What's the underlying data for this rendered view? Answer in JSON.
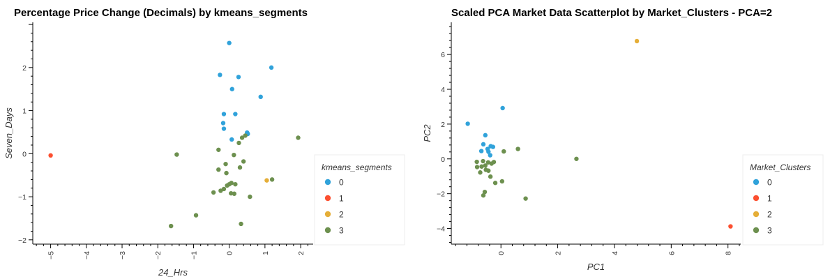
{
  "chart_data": [
    {
      "type": "scatter",
      "title": "Percentage Price Change (Decimals) by kmeans_segments",
      "xlabel": "24_Hrs",
      "ylabel": "Seven_Days",
      "xlim": [
        -5.5,
        2.35
      ],
      "ylim": [
        -2.1,
        3.05
      ],
      "xticks": [
        "−5",
        "−4",
        "−3",
        "−2",
        "−1",
        "0",
        "1",
        "2"
      ],
      "xtick_values": [
        -5,
        -4,
        -3,
        -2,
        -1,
        0,
        1,
        2
      ],
      "yticks": [
        "−2",
        "−1",
        "0",
        "1",
        "2"
      ],
      "ytick_values": [
        -2,
        -1,
        0,
        1,
        2
      ],
      "legend": {
        "title": "kmeans_segments",
        "position": "right",
        "entries": [
          {
            "label": "0",
            "color": "#30a2da"
          },
          {
            "label": "1",
            "color": "#fc4f30"
          },
          {
            "label": "2",
            "color": "#e5ae38"
          },
          {
            "label": "3",
            "color": "#6d904f"
          }
        ]
      },
      "series": [
        {
          "name": "0",
          "color": "#30a2da",
          "points": [
            [
              0.0,
              2.57
            ],
            [
              -0.26,
              1.83
            ],
            [
              0.26,
              1.78
            ],
            [
              1.18,
              2.0
            ],
            [
              0.08,
              1.5
            ],
            [
              0.88,
              1.32
            ],
            [
              -0.15,
              0.92
            ],
            [
              0.17,
              0.92
            ],
            [
              -0.17,
              0.71
            ],
            [
              -0.15,
              0.58
            ],
            [
              0.5,
              0.49
            ],
            [
              0.52,
              0.46
            ],
            [
              0.07,
              0.33
            ]
          ]
        },
        {
          "name": "1",
          "color": "#fc4f30",
          "points": [
            [
              -5.0,
              -0.04
            ]
          ]
        },
        {
          "name": "2",
          "color": "#e5ae38",
          "points": [
            [
              1.05,
              -0.62
            ]
          ]
        },
        {
          "name": "3",
          "color": "#6d904f",
          "points": [
            [
              1.93,
              0.37
            ],
            [
              0.45,
              0.42
            ],
            [
              0.36,
              0.37
            ],
            [
              0.27,
              0.25
            ],
            [
              -1.47,
              -0.02
            ],
            [
              -0.3,
              0.09
            ],
            [
              0.13,
              -0.03
            ],
            [
              -0.1,
              -0.24
            ],
            [
              0.4,
              -0.18
            ],
            [
              0.3,
              -0.32
            ],
            [
              -0.3,
              -0.37
            ],
            [
              -0.08,
              -0.45
            ],
            [
              0.06,
              -0.68
            ],
            [
              0.0,
              -0.71
            ],
            [
              -0.06,
              -0.74
            ],
            [
              0.17,
              -0.71
            ],
            [
              -0.15,
              -0.82
            ],
            [
              -0.24,
              -0.86
            ],
            [
              -0.44,
              -0.9
            ],
            [
              0.05,
              -0.92
            ],
            [
              0.14,
              -0.93
            ],
            [
              0.58,
              -1.0
            ],
            [
              1.2,
              -0.6
            ],
            [
              -0.93,
              -1.43
            ],
            [
              -1.63,
              -1.68
            ],
            [
              0.33,
              -1.63
            ]
          ]
        }
      ]
    },
    {
      "type": "scatter",
      "title": "Scaled PCA Market Data Scatterplot by Market_Clusters - PCA=2",
      "xlabel": "PC1",
      "ylabel": "PC2",
      "xlim": [
        -1.75,
        8.45
      ],
      "ylim": [
        -4.9,
        7.85
      ],
      "xticks": [
        "0",
        "2",
        "4",
        "6",
        "8"
      ],
      "xtick_values": [
        0,
        2,
        4,
        6,
        8
      ],
      "yticks": [
        "−4",
        "−2",
        "0",
        "2",
        "4",
        "6"
      ],
      "ytick_values": [
        -4,
        -2,
        0,
        2,
        4,
        6
      ],
      "legend": {
        "title": "Market_Clusters",
        "position": "right",
        "entries": [
          {
            "label": "0",
            "color": "#30a2da"
          },
          {
            "label": "1",
            "color": "#fc4f30"
          },
          {
            "label": "2",
            "color": "#e5ae38"
          },
          {
            "label": "3",
            "color": "#6d904f"
          }
        ]
      },
      "series": [
        {
          "name": "0",
          "color": "#30a2da",
          "points": [
            [
              -1.17,
              2.02
            ],
            [
              0.06,
              2.92
            ],
            [
              -0.55,
              1.36
            ],
            [
              -0.62,
              0.84
            ],
            [
              -0.36,
              0.73
            ],
            [
              -0.28,
              0.69
            ],
            [
              -0.47,
              0.57
            ],
            [
              -0.69,
              0.45
            ],
            [
              -0.44,
              0.41
            ],
            [
              -0.38,
              0.21
            ]
          ]
        },
        {
          "name": "1",
          "color": "#fc4f30",
          "points": [
            [
              8.09,
              -3.88
            ]
          ]
        },
        {
          "name": "2",
          "color": "#e5ae38",
          "points": [
            [
              4.79,
              6.77
            ]
          ]
        },
        {
          "name": "3",
          "color": "#6d904f",
          "points": [
            [
              0.6,
              0.57
            ],
            [
              0.1,
              0.43
            ],
            [
              -0.85,
              -0.17
            ],
            [
              -0.63,
              -0.13
            ],
            [
              -0.45,
              -0.2
            ],
            [
              -0.25,
              -0.18
            ],
            [
              -0.33,
              -0.27
            ],
            [
              -0.55,
              -0.38
            ],
            [
              -0.68,
              -0.44
            ],
            [
              -0.84,
              -0.47
            ],
            [
              -0.53,
              -0.63
            ],
            [
              -0.44,
              -0.68
            ],
            [
              -0.73,
              -0.78
            ],
            [
              -0.37,
              -1.02
            ],
            [
              -0.2,
              -1.38
            ],
            [
              0.04,
              -1.29
            ],
            [
              -0.57,
              -1.9
            ],
            [
              -0.62,
              -2.1
            ],
            [
              0.87,
              -2.28
            ],
            [
              2.66,
              0.0
            ]
          ]
        }
      ]
    }
  ]
}
